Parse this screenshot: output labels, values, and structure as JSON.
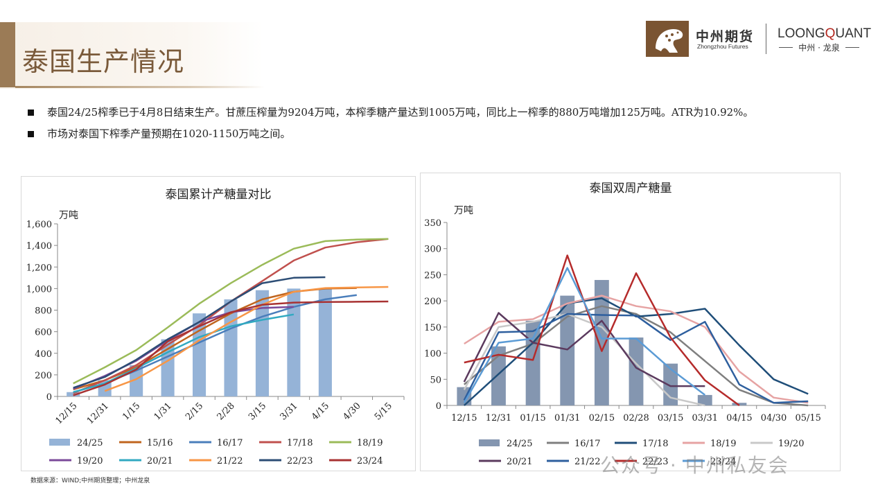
{
  "page": {
    "title": "泰国生产情况",
    "source_note": "数据来源：WIND;中州期货整理；中州龙泉",
    "watermark": "公众号 · 中州私友会"
  },
  "logo": {
    "cn": "中州期货",
    "en": "Zhongzhou Futures",
    "lq_prefix": "LOONGQ",
    "lq_q": "Q",
    "lq_suffix": "UANT",
    "lq_full": "LOONGQUANT",
    "lq_sub": "中州 · 龙泉"
  },
  "bullets": [
    "泰国24/25榨季已于4月8日结束生产。甘蔗压榨量为9204万吨，本榨季糖产量达到1005万吨，同比上一榨季的880万吨增加125万吨。ATR为10.92%。",
    "市场对泰国下榨季产量预期在1020-1150万吨之间。"
  ],
  "chart_data": [
    {
      "type": "bar+line",
      "title": "泰国累计产糖量对比",
      "ylabel": "万吨",
      "ylim": [
        0,
        1600
      ],
      "yticks": [
        0,
        200,
        400,
        600,
        800,
        1000,
        1200,
        1400,
        1600
      ],
      "ytick_labels": [
        "0",
        "200",
        "400",
        "600",
        "800",
        "1,000",
        "1,200",
        "1,400",
        "1,600"
      ],
      "categories": [
        "12/15",
        "12/31",
        "1/15",
        "1/31",
        "2/15",
        "2/28",
        "3/15",
        "3/31",
        "4/15",
        "4/30",
        "5/15"
      ],
      "bars": {
        "name": "24/25",
        "color": "#95b3d7",
        "values": [
          40,
          150,
          290,
          530,
          770,
          900,
          985,
          1000,
          1005,
          null,
          null
        ]
      },
      "series": [
        {
          "name": "15/16",
          "color": "#c0651e",
          "values": [
            65,
            150,
            270,
            440,
            610,
            770,
            900,
            970,
            1000,
            1005,
            null
          ]
        },
        {
          "name": "16/17",
          "color": "#4a7ebb",
          "values": [
            40,
            120,
            240,
            370,
            500,
            630,
            740,
            830,
            900,
            940,
            null
          ]
        },
        {
          "name": "17/18",
          "color": "#c0504d",
          "values": [
            30,
            150,
            290,
            480,
            660,
            880,
            1070,
            1260,
            1380,
            1430,
            1460
          ]
        },
        {
          "name": "18/19",
          "color": "#9bbb59",
          "values": [
            120,
            270,
            430,
            640,
            860,
            1050,
            1220,
            1370,
            1440,
            1455,
            1460
          ]
        },
        {
          "name": "19/20",
          "color": "#7b4a9a",
          "values": [
            70,
            190,
            330,
            520,
            690,
            780,
            820,
            830,
            null,
            null,
            null
          ]
        },
        {
          "name": "20/21",
          "color": "#31a9c1",
          "values": [
            40,
            120,
            260,
            410,
            550,
            650,
            710,
            760,
            null,
            null,
            null
          ]
        },
        {
          "name": "21/22",
          "color": "#f79646",
          "values": [
            null,
            50,
            160,
            330,
            520,
            690,
            850,
            970,
            1005,
            1010,
            1015
          ]
        },
        {
          "name": "22/23",
          "color": "#2c4d75",
          "values": [
            80,
            180,
            340,
            530,
            690,
            880,
            1050,
            1100,
            1105,
            null,
            null
          ]
        },
        {
          "name": "23/24",
          "color": "#a83232",
          "values": [
            10,
            110,
            250,
            510,
            650,
            780,
            850,
            870,
            875,
            878,
            880
          ]
        }
      ]
    },
    {
      "type": "bar+line",
      "title": "泰国双周产糖量",
      "ylabel": "万吨",
      "ylim": [
        0,
        350
      ],
      "yticks": [
        0,
        50,
        100,
        150,
        200,
        250,
        300,
        350
      ],
      "categories": [
        "12/15",
        "12/31",
        "01/15",
        "01/31",
        "02/15",
        "02/28",
        "03/15",
        "03/31",
        "04/15",
        "04/30",
        "05/15"
      ],
      "bars": {
        "name": "24/25",
        "color": "#8496b0",
        "values": [
          35,
          113,
          162,
          210,
          240,
          130,
          80,
          20,
          5,
          null,
          null
        ]
      },
      "series": [
        {
          "name": "16/17",
          "color": "#7f7f7f",
          "values": [
            40,
            95,
            118,
            170,
            190,
            175,
            140,
            85,
            30,
            5,
            0
          ]
        },
        {
          "name": "17/18",
          "color": "#1f4e79",
          "values": [
            0,
            60,
            120,
            195,
            205,
            170,
            175,
            185,
            115,
            50,
            22
          ]
        },
        {
          "name": "18/19",
          "color": "#e6a3a3",
          "values": [
            118,
            160,
            165,
            195,
            210,
            190,
            180,
            150,
            65,
            15,
            5
          ]
        },
        {
          "name": "19/20",
          "color": "#c8c8c8",
          "values": [
            30,
            150,
            160,
            175,
            150,
            80,
            15,
            0,
            null,
            null,
            null
          ]
        },
        {
          "name": "20/21",
          "color": "#5b3a5e",
          "values": [
            45,
            177,
            120,
            107,
            162,
            72,
            37,
            37,
            null,
            null,
            null
          ]
        },
        {
          "name": "21/22",
          "color": "#2e5f9e",
          "values": [
            10,
            140,
            142,
            175,
            173,
            172,
            125,
            160,
            40,
            5,
            8
          ]
        },
        {
          "name": "22/23",
          "color": "#b52b2b",
          "values": [
            82,
            97,
            87,
            287,
            104,
            253,
            130,
            48,
            0,
            null,
            null
          ]
        },
        {
          "name": "23/24",
          "color": "#5b9bd5",
          "values": [
            5,
            120,
            128,
            263,
            128,
            128,
            70,
            20,
            null,
            null,
            null
          ]
        }
      ]
    }
  ]
}
